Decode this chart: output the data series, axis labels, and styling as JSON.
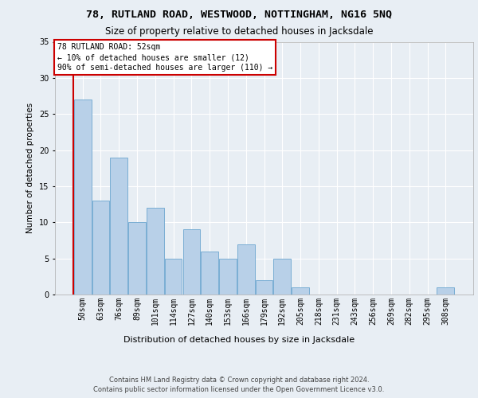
{
  "title1": "78, RUTLAND ROAD, WESTWOOD, NOTTINGHAM, NG16 5NQ",
  "title2": "Size of property relative to detached houses in Jacksdale",
  "xlabel": "Distribution of detached houses by size in Jacksdale",
  "ylabel": "Number of detached properties",
  "categories": [
    "50sqm",
    "63sqm",
    "76sqm",
    "89sqm",
    "101sqm",
    "114sqm",
    "127sqm",
    "140sqm",
    "153sqm",
    "166sqm",
    "179sqm",
    "192sqm",
    "205sqm",
    "218sqm",
    "231sqm",
    "243sqm",
    "256sqm",
    "269sqm",
    "282sqm",
    "295sqm",
    "308sqm"
  ],
  "values": [
    27,
    13,
    19,
    10,
    12,
    5,
    9,
    6,
    5,
    7,
    2,
    5,
    1,
    0,
    0,
    0,
    0,
    0,
    0,
    0,
    1
  ],
  "bar_color": "#b8d0e8",
  "bar_edge_color": "#7aaed4",
  "annotation_text": "78 RUTLAND ROAD: 52sqm\n← 10% of detached houses are smaller (12)\n90% of semi-detached houses are larger (110) →",
  "annotation_box_color": "#ffffff",
  "annotation_border_color": "#cc0000",
  "footer": "Contains HM Land Registry data © Crown copyright and database right 2024.\nContains public sector information licensed under the Open Government Licence v3.0.",
  "ylim": [
    0,
    35
  ],
  "yticks": [
    0,
    5,
    10,
    15,
    20,
    25,
    30,
    35
  ],
  "bg_color": "#e8eef4",
  "plot_bg_color": "#e8eef4",
  "grid_color": "#ffffff",
  "title1_fontsize": 9.5,
  "title2_fontsize": 8.5,
  "xlabel_fontsize": 8,
  "ylabel_fontsize": 7.5,
  "tick_fontsize": 7,
  "footer_fontsize": 6,
  "annotation_fontsize": 7
}
